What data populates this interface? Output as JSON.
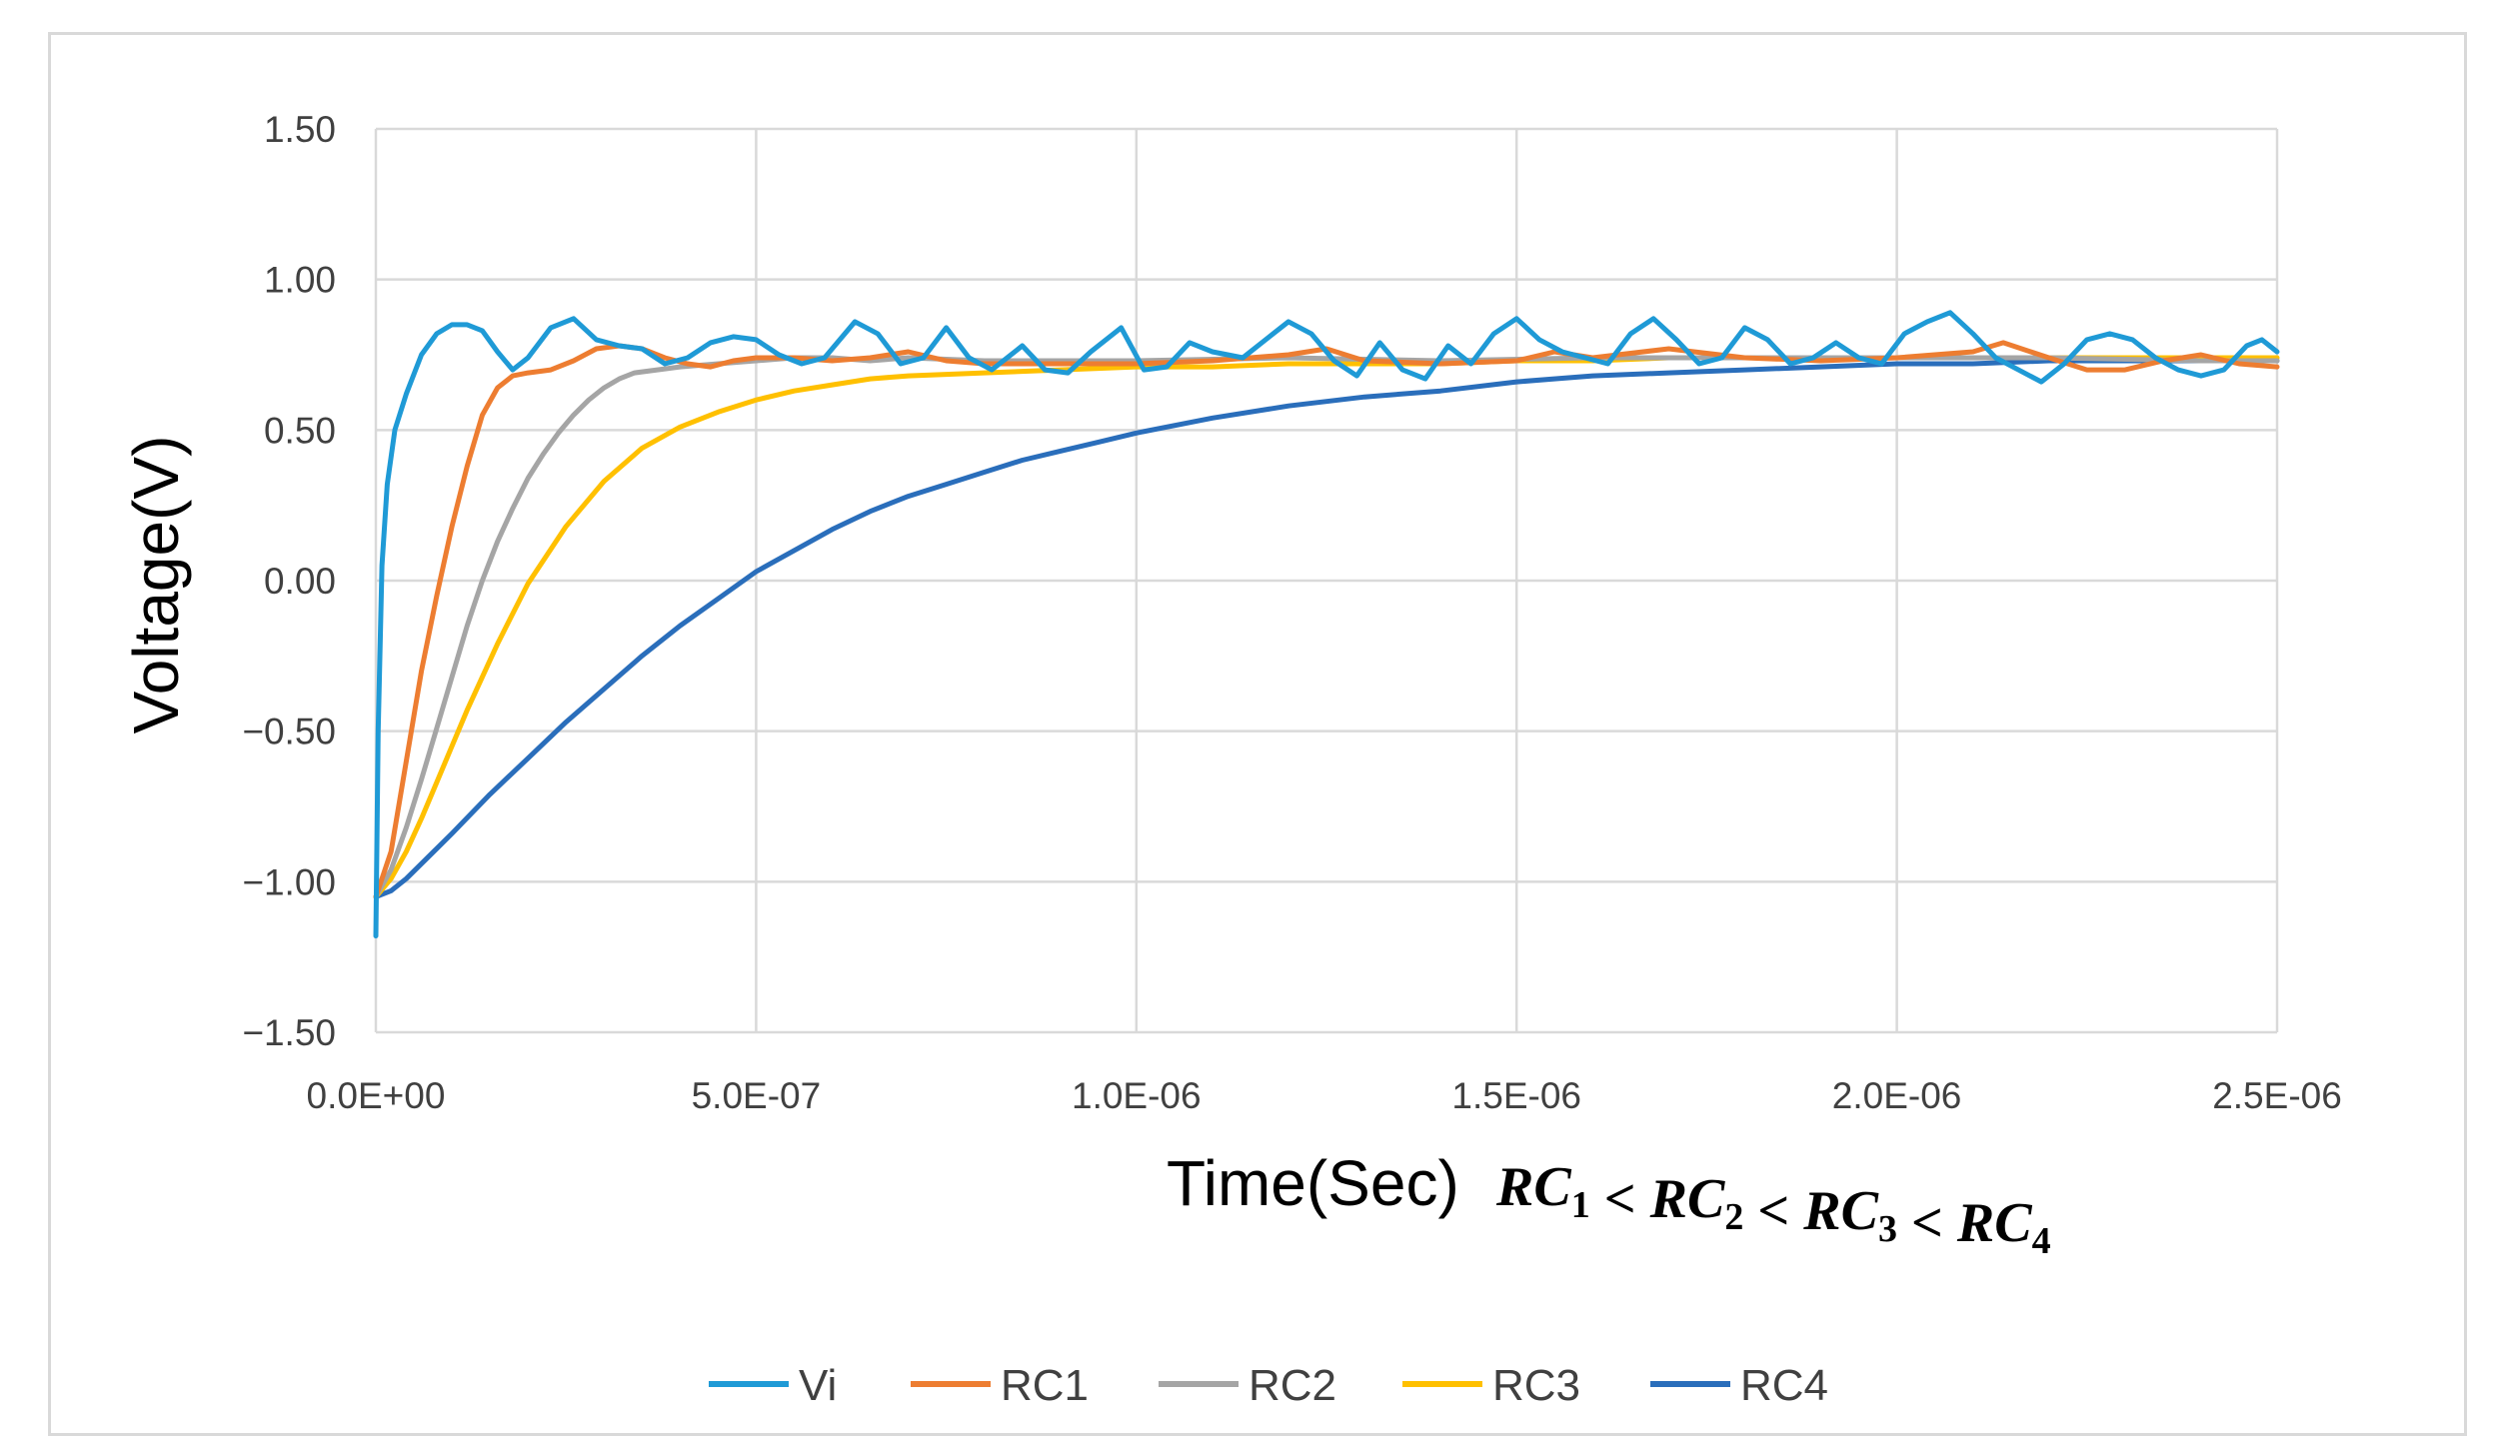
{
  "chart_data": {
    "type": "line",
    "title": "",
    "xlabel": "Time(Sec)",
    "xlabel_math": [
      {
        "base": "RC",
        "sub": "1"
      },
      {
        "base": "RC",
        "sub": "2"
      },
      {
        "base": "RC",
        "sub": "3"
      },
      {
        "base": "RC",
        "sub": "4"
      }
    ],
    "xlabel_math_separator": "<",
    "ylabel": "Voltage(V)",
    "xlim": [
      0,
      2.5e-06
    ],
    "ylim": [
      -1.5,
      1.5
    ],
    "x_ticks": [
      0,
      5e-07,
      1e-06,
      1.5e-06,
      2e-06,
      2.5e-06
    ],
    "x_tick_labels": [
      "0.0E+00",
      "5.0E-07",
      "1.0E-06",
      "1.5E-06",
      "2.0E-06",
      "2.5E-06"
    ],
    "y_ticks": [
      1.5,
      1.0,
      0.5,
      0.0,
      -0.5,
      -1.0,
      -1.5
    ],
    "y_tick_labels": [
      "1.50",
      "1.00",
      "0.50",
      "0.00",
      "−0.50",
      "−1.00",
      "−1.50"
    ],
    "grid": true,
    "legend_position": "bottom",
    "series": [
      {
        "name": "Vi",
        "color": "#1f9ad6",
        "x": [
          0,
          3e-09,
          8e-09,
          1.5e-08,
          2.5e-08,
          4e-08,
          6e-08,
          8e-08,
          1e-07,
          1.2e-07,
          1.4e-07,
          1.6e-07,
          1.8e-07,
          2e-07,
          2.3e-07,
          2.6e-07,
          2.9e-07,
          3.2e-07,
          3.5e-07,
          3.8e-07,
          4.1e-07,
          4.4e-07,
          4.7e-07,
          5e-07,
          5.3e-07,
          5.6e-07,
          5.9e-07,
          6.3e-07,
          6.6e-07,
          6.9e-07,
          7.2e-07,
          7.5e-07,
          7.8e-07,
          8.1e-07,
          8.5e-07,
          8.8e-07,
          9.1e-07,
          9.4e-07,
          9.8e-07,
          1.01e-06,
          1.04e-06,
          1.07e-06,
          1.1e-06,
          1.14e-06,
          1.17e-06,
          1.2e-06,
          1.23e-06,
          1.26e-06,
          1.29e-06,
          1.32e-06,
          1.35e-06,
          1.38e-06,
          1.41e-06,
          1.44e-06,
          1.47e-06,
          1.5e-06,
          1.53e-06,
          1.56e-06,
          1.59e-06,
          1.62e-06,
          1.65e-06,
          1.68e-06,
          1.71e-06,
          1.74e-06,
          1.77e-06,
          1.8e-06,
          1.83e-06,
          1.86e-06,
          1.89e-06,
          1.92e-06,
          1.95e-06,
          1.98e-06,
          2.01e-06,
          2.04e-06,
          2.07e-06,
          2.1e-06,
          2.13e-06,
          2.16e-06,
          2.19e-06,
          2.22e-06,
          2.25e-06,
          2.28e-06,
          2.31e-06,
          2.34e-06,
          2.37e-06,
          2.4e-06,
          2.43e-06,
          2.46e-06,
          2.48e-06,
          2.5e-06
        ],
        "y": [
          -1.18,
          -0.5,
          0.05,
          0.32,
          0.5,
          0.62,
          0.75,
          0.82,
          0.85,
          0.85,
          0.83,
          0.76,
          0.7,
          0.74,
          0.84,
          0.87,
          0.8,
          0.78,
          0.77,
          0.72,
          0.74,
          0.79,
          0.81,
          0.8,
          0.75,
          0.72,
          0.74,
          0.86,
          0.82,
          0.72,
          0.74,
          0.84,
          0.74,
          0.7,
          0.78,
          0.7,
          0.69,
          0.76,
          0.84,
          0.7,
          0.71,
          0.79,
          0.76,
          0.74,
          0.8,
          0.86,
          0.82,
          0.73,
          0.68,
          0.79,
          0.7,
          0.67,
          0.78,
          0.72,
          0.82,
          0.87,
          0.8,
          0.76,
          0.74,
          0.72,
          0.82,
          0.87,
          0.8,
          0.72,
          0.74,
          0.84,
          0.8,
          0.72,
          0.74,
          0.79,
          0.74,
          0.72,
          0.82,
          0.86,
          0.89,
          0.82,
          0.74,
          0.7,
          0.66,
          0.72,
          0.8,
          0.82,
          0.8,
          0.74,
          0.7,
          0.68,
          0.7,
          0.78,
          0.8,
          0.76
        ]
      },
      {
        "name": "RC1",
        "color": "#ed7d31",
        "x": [
          0,
          2e-08,
          4e-08,
          6e-08,
          8e-08,
          1e-07,
          1.2e-07,
          1.4e-07,
          1.6e-07,
          1.8e-07,
          2e-07,
          2.3e-07,
          2.6e-07,
          2.9e-07,
          3.2e-07,
          3.5e-07,
          3.8e-07,
          4.1e-07,
          4.4e-07,
          4.7e-07,
          5e-07,
          5.5e-07,
          6e-07,
          6.5e-07,
          7e-07,
          7.5e-07,
          8e-07,
          9e-07,
          1e-06,
          1.1e-06,
          1.2e-06,
          1.25e-06,
          1.3e-06,
          1.4e-06,
          1.5e-06,
          1.55e-06,
          1.6e-06,
          1.7e-06,
          1.8e-06,
          1.9e-06,
          2e-06,
          2.1e-06,
          2.14e-06,
          2.2e-06,
          2.25e-06,
          2.3e-06,
          2.35e-06,
          2.4e-06,
          2.45e-06,
          2.5e-06
        ],
        "y": [
          -1.05,
          -0.9,
          -0.6,
          -0.3,
          -0.05,
          0.18,
          0.38,
          0.55,
          0.64,
          0.68,
          0.69,
          0.7,
          0.73,
          0.77,
          0.78,
          0.77,
          0.74,
          0.72,
          0.71,
          0.73,
          0.74,
          0.74,
          0.73,
          0.74,
          0.76,
          0.73,
          0.72,
          0.72,
          0.72,
          0.73,
          0.75,
          0.77,
          0.73,
          0.72,
          0.73,
          0.76,
          0.74,
          0.77,
          0.74,
          0.73,
          0.74,
          0.76,
          0.79,
          0.74,
          0.7,
          0.7,
          0.73,
          0.75,
          0.72,
          0.71
        ]
      },
      {
        "name": "RC2",
        "color": "#a5a5a5",
        "x": [
          0,
          2e-08,
          4e-08,
          6e-08,
          8e-08,
          1e-07,
          1.2e-07,
          1.4e-07,
          1.6e-07,
          1.8e-07,
          2e-07,
          2.2e-07,
          2.4e-07,
          2.6e-07,
          2.8e-07,
          3e-07,
          3.2e-07,
          3.4e-07,
          3.7e-07,
          4e-07,
          4.5e-07,
          5e-07,
          5.5e-07,
          6e-07,
          6.5e-07,
          7e-07,
          8e-07,
          9e-07,
          1e-06,
          1.2e-06,
          1.4e-06,
          1.6e-06,
          1.8e-06,
          2e-06,
          2.2e-06,
          2.4e-06,
          2.5e-06
        ],
        "y": [
          -1.05,
          -0.96,
          -0.82,
          -0.66,
          -0.49,
          -0.32,
          -0.15,
          0.0,
          0.13,
          0.24,
          0.34,
          0.42,
          0.49,
          0.55,
          0.6,
          0.64,
          0.67,
          0.69,
          0.7,
          0.71,
          0.72,
          0.73,
          0.74,
          0.74,
          0.73,
          0.74,
          0.73,
          0.73,
          0.73,
          0.74,
          0.73,
          0.74,
          0.74,
          0.74,
          0.74,
          0.73,
          0.73
        ]
      },
      {
        "name": "RC3",
        "color": "#ffc000",
        "x": [
          0,
          2e-08,
          4e-08,
          6e-08,
          8e-08,
          1e-07,
          1.2e-07,
          1.4e-07,
          1.6e-07,
          1.8e-07,
          2e-07,
          2.5e-07,
          3e-07,
          3.5e-07,
          4e-07,
          4.5e-07,
          5e-07,
          5.5e-07,
          6e-07,
          6.5e-07,
          7e-07,
          8e-07,
          9e-07,
          1e-06,
          1.1e-06,
          1.2e-06,
          1.3e-06,
          1.4e-06,
          1.5e-06,
          1.6e-06,
          1.7e-06,
          1.8e-06,
          1.9e-06,
          2e-06,
          2.2e-06,
          2.4e-06,
          2.5e-06
        ],
        "y": [
          -1.05,
          -0.99,
          -0.9,
          -0.79,
          -0.67,
          -0.55,
          -0.43,
          -0.32,
          -0.21,
          -0.11,
          -0.01,
          0.18,
          0.33,
          0.44,
          0.51,
          0.56,
          0.6,
          0.63,
          0.65,
          0.67,
          0.68,
          0.69,
          0.7,
          0.71,
          0.71,
          0.72,
          0.72,
          0.72,
          0.73,
          0.73,
          0.74,
          0.74,
          0.74,
          0.74,
          0.74,
          0.74,
          0.74
        ]
      },
      {
        "name": "RC4",
        "color": "#2a6ebb",
        "x": [
          0,
          2e-08,
          4e-08,
          6e-08,
          8e-08,
          1e-07,
          1.5e-07,
          2e-07,
          2.5e-07,
          3e-07,
          3.5e-07,
          4e-07,
          4.5e-07,
          5e-07,
          5.5e-07,
          6e-07,
          6.5e-07,
          7e-07,
          7.5e-07,
          8e-07,
          8.5e-07,
          9e-07,
          9.5e-07,
          1e-06,
          1.1e-06,
          1.2e-06,
          1.3e-06,
          1.4e-06,
          1.5e-06,
          1.6e-06,
          1.7e-06,
          1.8e-06,
          1.9e-06,
          2e-06,
          2.1e-06,
          2.2e-06,
          2.3e-06,
          2.4e-06,
          2.5e-06
        ],
        "y": [
          -1.05,
          -1.03,
          -0.99,
          -0.94,
          -0.89,
          -0.84,
          -0.71,
          -0.59,
          -0.47,
          -0.36,
          -0.25,
          -0.15,
          -0.06,
          0.03,
          0.1,
          0.17,
          0.23,
          0.28,
          0.32,
          0.36,
          0.4,
          0.43,
          0.46,
          0.49,
          0.54,
          0.58,
          0.61,
          0.63,
          0.66,
          0.68,
          0.69,
          0.7,
          0.71,
          0.72,
          0.72,
          0.73,
          0.73,
          0.73,
          0.73
        ]
      }
    ]
  }
}
